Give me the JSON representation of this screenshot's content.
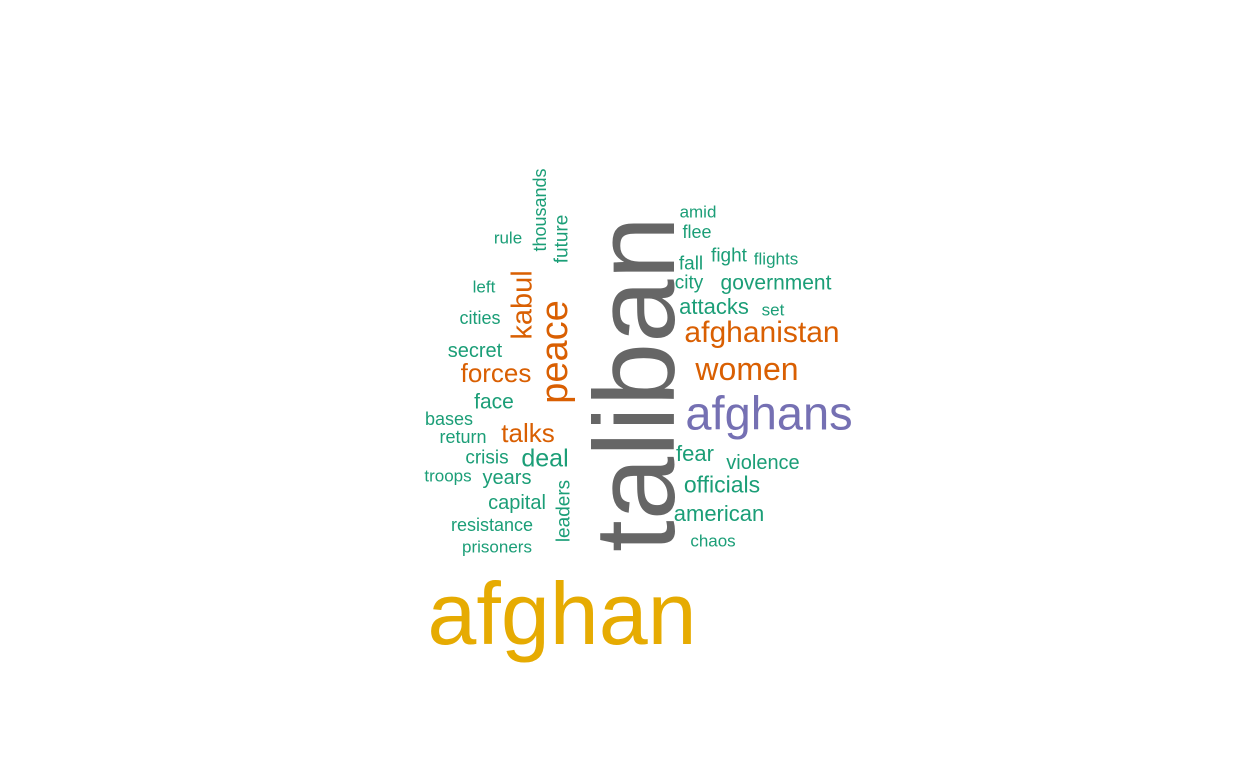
{
  "palette": {
    "teal": "#1b9e77",
    "orange": "#d95f02",
    "purple": "#7570b3",
    "gold": "#e6ab02",
    "gray": "#666666"
  },
  "words": [
    {
      "text": "taliban",
      "color": "gray",
      "orientation": "vertical"
    },
    {
      "text": "afghan",
      "color": "gold",
      "orientation": "horizontal"
    },
    {
      "text": "afghans",
      "color": "purple",
      "orientation": "horizontal"
    },
    {
      "text": "peace",
      "color": "orange",
      "orientation": "vertical"
    },
    {
      "text": "afghanistan",
      "color": "orange",
      "orientation": "horizontal"
    },
    {
      "text": "women",
      "color": "orange",
      "orientation": "horizontal"
    },
    {
      "text": "kabul",
      "color": "orange",
      "orientation": "vertical"
    },
    {
      "text": "forces",
      "color": "orange",
      "orientation": "horizontal"
    },
    {
      "text": "talks",
      "color": "orange",
      "orientation": "horizontal"
    },
    {
      "text": "deal",
      "color": "teal",
      "orientation": "horizontal"
    },
    {
      "text": "government",
      "color": "teal",
      "orientation": "horizontal"
    },
    {
      "text": "officials",
      "color": "teal",
      "orientation": "horizontal"
    },
    {
      "text": "attacks",
      "color": "teal",
      "orientation": "horizontal"
    },
    {
      "text": "american",
      "color": "teal",
      "orientation": "horizontal"
    },
    {
      "text": "fear",
      "color": "teal",
      "orientation": "horizontal"
    },
    {
      "text": "violence",
      "color": "teal",
      "orientation": "horizontal"
    },
    {
      "text": "capital",
      "color": "teal",
      "orientation": "horizontal"
    },
    {
      "text": "years",
      "color": "teal",
      "orientation": "horizontal"
    },
    {
      "text": "face",
      "color": "teal",
      "orientation": "horizontal"
    },
    {
      "text": "secret",
      "color": "teal",
      "orientation": "horizontal"
    },
    {
      "text": "crisis",
      "color": "teal",
      "orientation": "horizontal"
    },
    {
      "text": "leaders",
      "color": "teal",
      "orientation": "vertical"
    },
    {
      "text": "future",
      "color": "teal",
      "orientation": "vertical"
    },
    {
      "text": "thousands",
      "color": "teal",
      "orientation": "vertical"
    },
    {
      "text": "fight",
      "color": "teal",
      "orientation": "horizontal"
    },
    {
      "text": "city",
      "color": "teal",
      "orientation": "horizontal"
    },
    {
      "text": "fall",
      "color": "teal",
      "orientation": "horizontal"
    },
    {
      "text": "flee",
      "color": "teal",
      "orientation": "horizontal"
    },
    {
      "text": "amid",
      "color": "teal",
      "orientation": "horizontal"
    },
    {
      "text": "flights",
      "color": "teal",
      "orientation": "horizontal"
    },
    {
      "text": "set",
      "color": "teal",
      "orientation": "horizontal"
    },
    {
      "text": "rule",
      "color": "teal",
      "orientation": "horizontal"
    },
    {
      "text": "left",
      "color": "teal",
      "orientation": "horizontal"
    },
    {
      "text": "cities",
      "color": "teal",
      "orientation": "horizontal"
    },
    {
      "text": "bases",
      "color": "teal",
      "orientation": "horizontal"
    },
    {
      "text": "return",
      "color": "teal",
      "orientation": "horizontal"
    },
    {
      "text": "troops",
      "color": "teal",
      "orientation": "horizontal"
    },
    {
      "text": "resistance",
      "color": "teal",
      "orientation": "horizontal"
    },
    {
      "text": "prisoners",
      "color": "teal",
      "orientation": "horizontal"
    },
    {
      "text": "chaos",
      "color": "teal",
      "orientation": "horizontal"
    }
  ]
}
